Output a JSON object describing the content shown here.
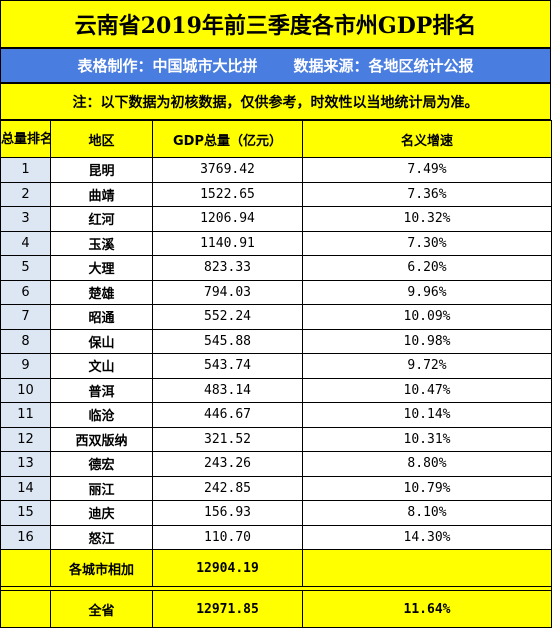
{
  "title": "云南省2019年前三季度各市州GDP排名",
  "source": {
    "maker": "表格制作：中国城市大比拼",
    "origin": "数据来源：各地区统计公报"
  },
  "note": "注：以下数据为初核数据，仅供参考，时效性以当地统计局为准。",
  "headers": {
    "rank": "总量排名",
    "region": "地区",
    "gdp": "GDP总量（亿元）",
    "growth": "名义增速"
  },
  "rows": [
    {
      "rank": "1",
      "region": "昆明",
      "gdp": "3769.42",
      "growth": "7.49%"
    },
    {
      "rank": "2",
      "region": "曲靖",
      "gdp": "1522.65",
      "growth": "7.36%"
    },
    {
      "rank": "3",
      "region": "红河",
      "gdp": "1206.94",
      "growth": "10.32%"
    },
    {
      "rank": "4",
      "region": "玉溪",
      "gdp": "1140.91",
      "growth": "7.30%"
    },
    {
      "rank": "5",
      "region": "大理",
      "gdp": "823.33",
      "growth": "6.20%"
    },
    {
      "rank": "6",
      "region": "楚雄",
      "gdp": "794.03",
      "growth": "9.96%"
    },
    {
      "rank": "7",
      "region": "昭通",
      "gdp": "552.24",
      "growth": "10.09%"
    },
    {
      "rank": "8",
      "region": "保山",
      "gdp": "545.88",
      "growth": "10.98%"
    },
    {
      "rank": "9",
      "region": "文山",
      "gdp": "543.74",
      "growth": "9.72%"
    },
    {
      "rank": "10",
      "region": "普洱",
      "gdp": "483.14",
      "growth": "10.47%"
    },
    {
      "rank": "11",
      "region": "临沧",
      "gdp": "446.67",
      "growth": "10.14%"
    },
    {
      "rank": "12",
      "region": "西双版纳",
      "gdp": "321.52",
      "growth": "10.31%"
    },
    {
      "rank": "13",
      "region": "德宏",
      "gdp": "243.26",
      "growth": "8.80%"
    },
    {
      "rank": "14",
      "region": "丽江",
      "gdp": "242.85",
      "growth": "10.79%"
    },
    {
      "rank": "15",
      "region": "迪庆",
      "gdp": "156.93",
      "growth": "8.10%"
    },
    {
      "rank": "16",
      "region": "怒江",
      "gdp": "110.70",
      "growth": "14.30%"
    }
  ],
  "sum_cities": {
    "label": "各城市相加",
    "gdp": "12904.19",
    "growth": ""
  },
  "province": {
    "label": "全省",
    "gdp": "12971.85",
    "growth": "11.64%"
  }
}
